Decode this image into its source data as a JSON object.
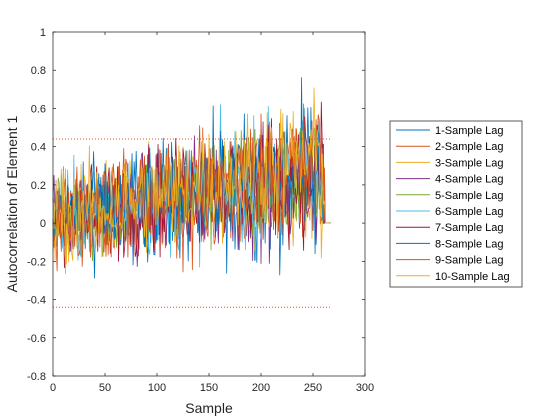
{
  "chart_data": {
    "type": "line",
    "title": "",
    "xlabel": "Sample",
    "ylabel": "Autocorrelation of Element 1",
    "xlim": [
      0,
      300
    ],
    "ylim": [
      -0.8,
      1
    ],
    "xticks": [
      0,
      50,
      100,
      150,
      200,
      250,
      300
    ],
    "yticks": [
      -0.8,
      -0.6,
      -0.4,
      -0.2,
      0,
      0.2,
      0.4,
      0.6,
      0.8,
      1
    ],
    "xtick_labels": [
      "0",
      "50",
      "100",
      "150",
      "200",
      "250",
      "300"
    ],
    "ytick_labels": [
      "-0.8",
      "-0.6",
      "-0.4",
      "-0.2",
      "0",
      "0.2",
      "0.4",
      "0.6",
      "0.8",
      "1"
    ],
    "n_samples": 267,
    "thresholds": [
      0.44,
      -0.44
    ],
    "threshold_x_range": [
      0,
      267
    ],
    "threshold_style": "dotted red",
    "grid": false,
    "legend_position": "outside-right",
    "series": [
      {
        "name": "1-Sample Lag",
        "color": "#0072BD"
      },
      {
        "name": "2-Sample Lag",
        "color": "#D95319"
      },
      {
        "name": "3-Sample Lag",
        "color": "#EDB120"
      },
      {
        "name": "4-Sample Lag",
        "color": "#7E2F8E"
      },
      {
        "name": "5-Sample Lag",
        "color": "#77AC30"
      },
      {
        "name": "6-Sample Lag",
        "color": "#4DBEEE"
      },
      {
        "name": "7-Sample Lag",
        "color": "#A2142F"
      },
      {
        "name": "8-Sample Lag",
        "color": "#0072BD"
      },
      {
        "name": "9-Sample Lag",
        "color": "#D95319"
      },
      {
        "name": "10-Sample Lag",
        "color": "#EDB120"
      }
    ]
  }
}
